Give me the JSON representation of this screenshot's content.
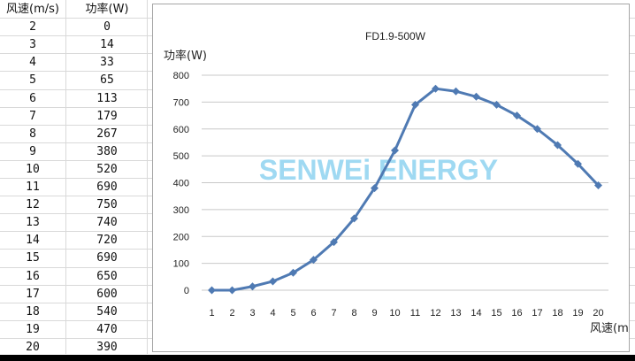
{
  "table": {
    "headers": [
      "风速(m/s)",
      "功率(W)"
    ],
    "rows": [
      [
        "2",
        "0"
      ],
      [
        "3",
        "14"
      ],
      [
        "4",
        "33"
      ],
      [
        "5",
        "65"
      ],
      [
        "6",
        "113"
      ],
      [
        "7",
        "179"
      ],
      [
        "8",
        "267"
      ],
      [
        "9",
        "380"
      ],
      [
        "10",
        "520"
      ],
      [
        "11",
        "690"
      ],
      [
        "12",
        "750"
      ],
      [
        "13",
        "740"
      ],
      [
        "14",
        "720"
      ],
      [
        "15",
        "690"
      ],
      [
        "16",
        "650"
      ],
      [
        "17",
        "600"
      ],
      [
        "18",
        "540"
      ],
      [
        "19",
        "470"
      ],
      [
        "20",
        "390"
      ]
    ]
  },
  "watermark": "SENWEi ENERGY",
  "colors": {
    "series": "#4f7ab3",
    "grid": "#c8c8c8",
    "watermark": "#8fd3f0"
  },
  "chart_data": {
    "type": "line",
    "title": "FD1.9-500W",
    "ylabel": "功率(W)",
    "xlabel": "风速(m/s)",
    "x": [
      1,
      2,
      3,
      4,
      5,
      6,
      7,
      8,
      9,
      10,
      11,
      12,
      13,
      14,
      15,
      16,
      17,
      18,
      19,
      20
    ],
    "series": [
      {
        "values": [
          0,
          0,
          14,
          33,
          65,
          113,
          179,
          267,
          380,
          520,
          690,
          750,
          740,
          720,
          690,
          650,
          600,
          540,
          470,
          390
        ]
      }
    ],
    "ylim": [
      0,
      800
    ],
    "yticks": [
      0,
      100,
      200,
      300,
      400,
      500,
      600,
      700,
      800
    ],
    "grid": true,
    "marker": "diamond",
    "legend": "none"
  }
}
